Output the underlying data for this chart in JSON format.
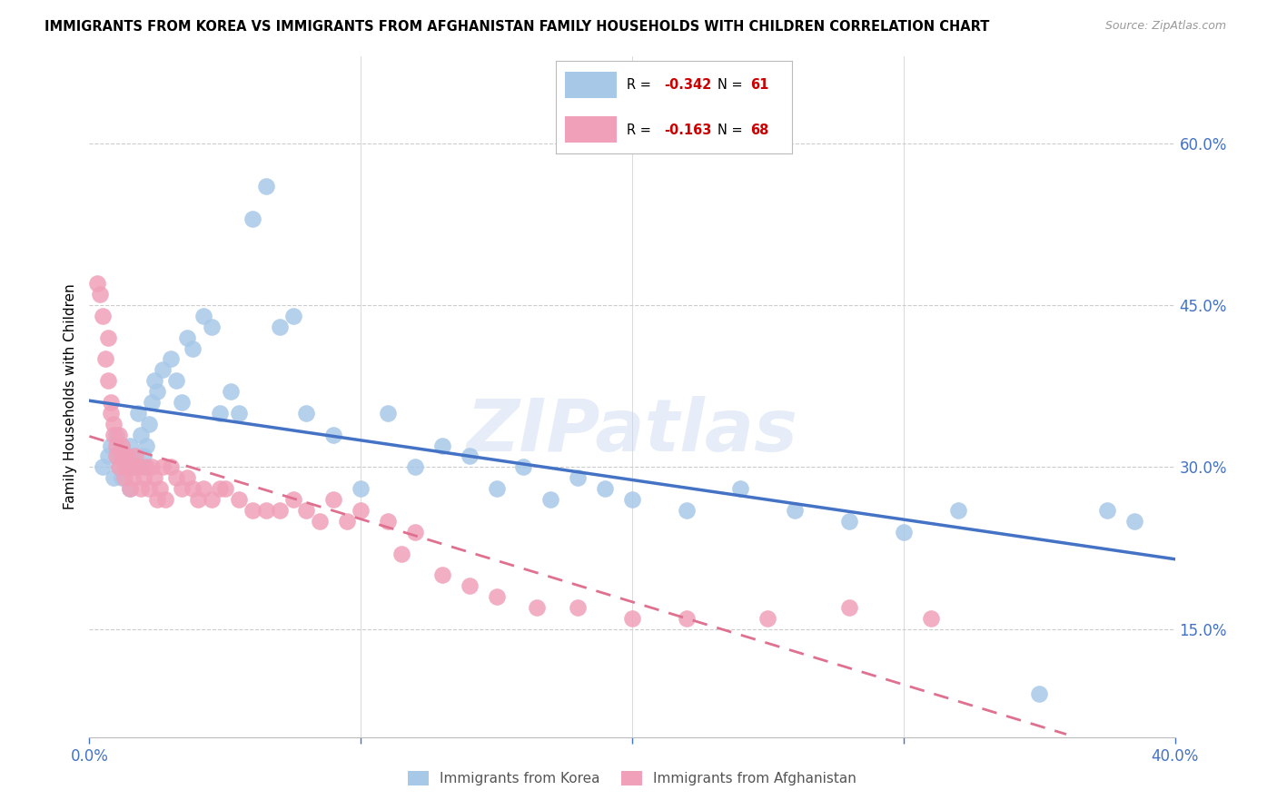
{
  "title": "IMMIGRANTS FROM KOREA VS IMMIGRANTS FROM AFGHANISTAN FAMILY HOUSEHOLDS WITH CHILDREN CORRELATION CHART",
  "source": "Source: ZipAtlas.com",
  "ylabel": "Family Households with Children",
  "ytick_labels": [
    "60.0%",
    "45.0%",
    "30.0%",
    "15.0%"
  ],
  "ytick_values": [
    0.6,
    0.45,
    0.3,
    0.15
  ],
  "xlim": [
    0.0,
    0.4
  ],
  "ylim": [
    0.05,
    0.68
  ],
  "legend_r_korea": "-0.342",
  "legend_n_korea": "61",
  "legend_r_afghan": "-0.163",
  "legend_n_afghan": "68",
  "color_korea": "#a8c8e8",
  "color_afghan": "#f0a0b8",
  "color_korea_line": "#4472C4",
  "color_afghan_line": "#e07090",
  "color_axis_text": "#4472C4",
  "watermark": "ZIPatlas",
  "korea_x": [
    0.005,
    0.007,
    0.008,
    0.009,
    0.01,
    0.01,
    0.011,
    0.012,
    0.012,
    0.013,
    0.014,
    0.015,
    0.015,
    0.016,
    0.017,
    0.018,
    0.019,
    0.02,
    0.02,
    0.021,
    0.022,
    0.023,
    0.024,
    0.025,
    0.027,
    0.03,
    0.032,
    0.034,
    0.036,
    0.038,
    0.042,
    0.045,
    0.048,
    0.052,
    0.055,
    0.06,
    0.065,
    0.07,
    0.075,
    0.08,
    0.09,
    0.1,
    0.11,
    0.12,
    0.13,
    0.14,
    0.15,
    0.16,
    0.17,
    0.18,
    0.19,
    0.2,
    0.22,
    0.24,
    0.26,
    0.28,
    0.3,
    0.32,
    0.35,
    0.375,
    0.385
  ],
  "korea_y": [
    0.3,
    0.31,
    0.32,
    0.29,
    0.33,
    0.31,
    0.3,
    0.32,
    0.29,
    0.31,
    0.3,
    0.32,
    0.28,
    0.31,
    0.3,
    0.35,
    0.33,
    0.31,
    0.3,
    0.32,
    0.34,
    0.36,
    0.38,
    0.37,
    0.39,
    0.4,
    0.38,
    0.36,
    0.42,
    0.41,
    0.44,
    0.43,
    0.35,
    0.37,
    0.35,
    0.53,
    0.56,
    0.43,
    0.44,
    0.35,
    0.33,
    0.28,
    0.35,
    0.3,
    0.32,
    0.31,
    0.28,
    0.3,
    0.27,
    0.29,
    0.28,
    0.27,
    0.26,
    0.28,
    0.26,
    0.25,
    0.24,
    0.26,
    0.09,
    0.26,
    0.25
  ],
  "afghan_x": [
    0.003,
    0.004,
    0.005,
    0.006,
    0.007,
    0.007,
    0.008,
    0.008,
    0.009,
    0.009,
    0.01,
    0.01,
    0.011,
    0.011,
    0.012,
    0.012,
    0.013,
    0.013,
    0.014,
    0.015,
    0.015,
    0.016,
    0.016,
    0.017,
    0.018,
    0.019,
    0.02,
    0.021,
    0.022,
    0.023,
    0.024,
    0.025,
    0.026,
    0.027,
    0.028,
    0.03,
    0.032,
    0.034,
    0.036,
    0.038,
    0.04,
    0.042,
    0.045,
    0.048,
    0.05,
    0.055,
    0.06,
    0.065,
    0.07,
    0.075,
    0.08,
    0.085,
    0.09,
    0.095,
    0.1,
    0.11,
    0.115,
    0.12,
    0.13,
    0.14,
    0.15,
    0.165,
    0.18,
    0.2,
    0.22,
    0.25,
    0.28,
    0.31
  ],
  "afghan_y": [
    0.47,
    0.46,
    0.44,
    0.4,
    0.42,
    0.38,
    0.35,
    0.36,
    0.33,
    0.34,
    0.32,
    0.31,
    0.33,
    0.3,
    0.32,
    0.31,
    0.3,
    0.29,
    0.31,
    0.3,
    0.28,
    0.29,
    0.3,
    0.31,
    0.3,
    0.28,
    0.29,
    0.3,
    0.28,
    0.3,
    0.29,
    0.27,
    0.28,
    0.3,
    0.27,
    0.3,
    0.29,
    0.28,
    0.29,
    0.28,
    0.27,
    0.28,
    0.27,
    0.28,
    0.28,
    0.27,
    0.26,
    0.26,
    0.26,
    0.27,
    0.26,
    0.25,
    0.27,
    0.25,
    0.26,
    0.25,
    0.22,
    0.24,
    0.2,
    0.19,
    0.18,
    0.17,
    0.17,
    0.16,
    0.16,
    0.16,
    0.17,
    0.16
  ]
}
